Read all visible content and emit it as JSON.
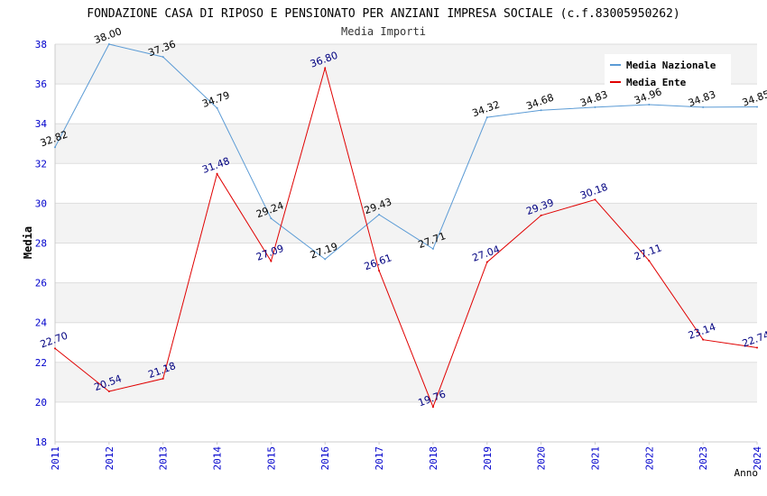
{
  "chart_data": {
    "type": "line",
    "title": "FONDAZIONE CASA DI RIPOSO E PENSIONATO PER ANZIANI IMPRESA SOCIALE (c.f.83005950262)",
    "subtitle": "Media Importi",
    "xlabel": "Anno",
    "ylabel": "Media",
    "ylim": [
      18,
      38
    ],
    "yticks": [
      "18",
      "20",
      "22",
      "24",
      "26",
      "28",
      "30",
      "32",
      "34",
      "36",
      "38"
    ],
    "categories": [
      "2011",
      "2012",
      "2013",
      "2014",
      "2015",
      "2016",
      "2017",
      "2018",
      "2019",
      "2020",
      "2021",
      "2022",
      "2023",
      "2024"
    ],
    "legend_position": "top-right",
    "grid": true,
    "series": [
      {
        "name": "Media Nazionale",
        "color": "#5b9bd5",
        "label_color": "#000000",
        "values": [
          32.82,
          38.0,
          37.36,
          34.79,
          29.24,
          27.19,
          29.43,
          27.71,
          34.32,
          34.68,
          34.83,
          34.96,
          34.83,
          34.85
        ],
        "labels": [
          "32.82",
          "38.00",
          "37.36",
          "34.79",
          "29.24",
          "27.19",
          "29.43",
          "27.71",
          "34.32",
          "34.68",
          "34.83",
          "34.96",
          "34.83",
          "34.85"
        ]
      },
      {
        "name": "Media Ente",
        "color": "#e00000",
        "label_color": "#000080",
        "values": [
          22.7,
          20.54,
          21.18,
          31.48,
          27.09,
          36.8,
          26.61,
          19.76,
          27.04,
          29.39,
          30.18,
          27.11,
          23.14,
          22.74
        ],
        "labels": [
          "22.70",
          "20.54",
          "21.18",
          "31.48",
          "27.09",
          "36.80",
          "26.61",
          "19.76",
          "27.04",
          "29.39",
          "30.18",
          "27.11",
          "23.14",
          "22.74"
        ]
      }
    ]
  }
}
